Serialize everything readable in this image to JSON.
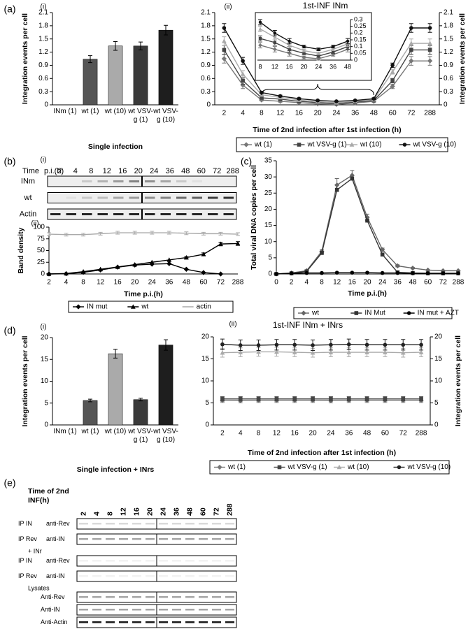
{
  "panels_note_free": null,
  "chart_data": [
    {
      "type": "bar",
      "panel": "(a)",
      "label": "(i)",
      "ylabel": "Integration events per cell",
      "xlabel": "Single infection",
      "categories": [
        "INm (1)",
        "wt (1)",
        "wt (10)",
        "wt VSV-g (1)",
        "wt VSV-g (10)"
      ],
      "values": [
        0,
        1.04,
        1.34,
        1.34,
        1.7
      ],
      "errors": [
        0,
        0.08,
        0.1,
        0.09,
        0.11
      ],
      "colors": [
        "#ffffff",
        "#555555",
        "#aaaaaa",
        "#3a3a3a",
        "#1e1e1e"
      ],
      "ylim": [
        0,
        2.1
      ],
      "yticks": [
        0,
        0.3,
        0.6,
        0.9,
        1.2,
        1.5,
        1.8,
        2.1
      ],
      "yaxis_sides": [
        "left"
      ]
    },
    {
      "type": "line",
      "label": "(ii)",
      "title": "1st-INF INm",
      "ylabel": "Integration events per cell",
      "xlabel": "Time of 2nd infection after 1st infection (h)",
      "categories": [
        "2",
        "4",
        "8",
        "12",
        "16",
        "20",
        "24",
        "36",
        "48",
        "60",
        "72",
        "288"
      ],
      "series": [
        {
          "name": "wt (1)",
          "color": "#777777",
          "marker": "diamond",
          "values": [
            1.05,
            0.45,
            0.11,
            0.08,
            0.05,
            0.02,
            0.01,
            0.04,
            0.08,
            0.42,
            1.0,
            1.0
          ],
          "errors": [
            0.1,
            0.08,
            0.02,
            0.02,
            0.02,
            0.01,
            0.01,
            0.01,
            0.02,
            0.05,
            0.1,
            0.1
          ]
        },
        {
          "name": "wt VSV-g (1)",
          "color": "#444444",
          "marker": "square",
          "values": [
            1.25,
            0.55,
            0.16,
            0.13,
            0.08,
            0.05,
            0.03,
            0.06,
            0.1,
            0.55,
            1.25,
            1.25
          ],
          "errors": [
            0.1,
            0.08,
            0.02,
            0.02,
            0.02,
            0.01,
            0.01,
            0.01,
            0.02,
            0.05,
            0.1,
            0.1
          ]
        },
        {
          "name": "wt (10)",
          "color": "#aaaaaa",
          "marker": "triangle",
          "values": [
            1.45,
            0.7,
            0.23,
            0.17,
            0.11,
            0.07,
            0.05,
            0.08,
            0.12,
            0.75,
            1.4,
            1.4
          ],
          "errors": [
            0.1,
            0.08,
            0.02,
            0.02,
            0.02,
            0.01,
            0.01,
            0.01,
            0.02,
            0.05,
            0.1,
            0.1
          ]
        },
        {
          "name": "wt VSV-g (10)",
          "color": "#111111",
          "marker": "circle",
          "values": [
            1.75,
            1.0,
            0.28,
            0.2,
            0.14,
            0.1,
            0.08,
            0.1,
            0.14,
            0.9,
            1.75,
            1.75
          ],
          "errors": [
            0.1,
            0.08,
            0.02,
            0.02,
            0.02,
            0.01,
            0.01,
            0.01,
            0.02,
            0.05,
            0.1,
            0.1
          ]
        }
      ],
      "ylim": [
        0,
        2.1
      ],
      "yticks": [
        0,
        0.3,
        0.6,
        0.9,
        1.2,
        1.5,
        1.8,
        2.1
      ],
      "yaxis_sides": [
        "left",
        "right"
      ],
      "ylabel_side": "right",
      "legend": "bottom",
      "inset": {
        "categories": [
          "8",
          "12",
          "16",
          "20",
          "24",
          "36",
          "48"
        ],
        "ylim": [
          0,
          0.3
        ],
        "yticks": [
          0,
          0.05,
          0.1,
          0.15,
          0.2,
          0.25,
          0.3
        ]
      }
    },
    {
      "type": "line",
      "label": "(ii)",
      "ylabel": "Band density",
      "xlabel": "Time p.i.(h)",
      "x_on_ticks": true,
      "categories": [
        "2",
        "4",
        "8",
        "12",
        "16",
        "20",
        "24",
        "36",
        "48",
        "60",
        "72",
        "288"
      ],
      "series": [
        {
          "name": "IN mut",
          "color": "#000000",
          "marker": "diamond",
          "values": [
            0,
            0.5,
            3.5,
            8.5,
            14.5,
            19,
            21,
            22,
            10,
            3,
            0,
            null
          ]
        },
        {
          "name": "wt",
          "color": "#000000",
          "marker": "triangle",
          "values": [
            0,
            1,
            5,
            10,
            15,
            20,
            25,
            30,
            35,
            42,
            64,
            65
          ],
          "errors": [
            0,
            0,
            0,
            0,
            0,
            0,
            0,
            0,
            2,
            3,
            4,
            4
          ]
        },
        {
          "name": "actin",
          "color": "#aaaaaa",
          "marker": "none",
          "values": [
            85,
            84,
            84,
            86,
            88,
            88,
            88,
            88,
            87,
            86,
            86,
            85
          ],
          "errors": [
            3,
            3,
            3,
            3,
            3,
            3,
            3,
            3,
            3,
            3,
            3,
            3
          ]
        }
      ],
      "ylim": [
        0,
        100
      ],
      "yticks": [
        0,
        25,
        50,
        75,
        100
      ],
      "yaxis_sides": [
        "left"
      ],
      "legend": "bottom"
    },
    {
      "type": "line",
      "panel": "(c)",
      "ylabel": "Total viral DNA copies per cell",
      "xlabel": "Time p.i.(h)",
      "x_on_ticks": true,
      "categories": [
        "0",
        "2",
        "4",
        "8",
        "12",
        "16",
        "20",
        "24",
        "36",
        "48",
        "60",
        "72",
        "288"
      ],
      "series": [
        {
          "name": "wt",
          "color": "#666666",
          "marker": "diamond",
          "values": [
            0,
            0.3,
            1,
            7,
            27.5,
            30.5,
            17.5,
            7.5,
            2.5,
            1.8,
            1.2,
            1,
            1
          ],
          "errors": [
            0,
            0,
            0.3,
            0.5,
            2,
            1.5,
            1,
            0.5,
            0.3,
            0.2,
            0.1,
            0.1,
            0.1
          ]
        },
        {
          "name": "IN Mut",
          "color": "#333333",
          "marker": "square",
          "values": [
            0,
            0.2,
            0.8,
            6.5,
            26,
            29.5,
            16.5,
            6,
            0.5,
            0.3,
            0.2,
            0.2,
            0.2
          ]
        },
        {
          "name": "IN mut + AZT",
          "color": "#000000",
          "marker": "circle",
          "values": [
            0,
            0.2,
            0.3,
            0.3,
            0.4,
            0.4,
            0.4,
            0.3,
            0.3,
            0.2,
            0.2,
            0.2,
            0.2
          ]
        }
      ],
      "ylim": [
        0,
        35
      ],
      "yticks": [
        0,
        5,
        10,
        15,
        20,
        25,
        30,
        35
      ],
      "yaxis_sides": [
        "left"
      ],
      "legend": "bottom"
    },
    {
      "type": "bar",
      "panel": "(d)",
      "label": "(i)",
      "ylabel": "Integration events per cell",
      "xlabel": "Single infection + INrs",
      "categories": [
        "INm (1)",
        "wt (1)",
        "wt (10)",
        "wt VSV-g (1)",
        "wt VSV-g (10)"
      ],
      "values": [
        0,
        5.6,
        16.3,
        5.8,
        18.3
      ],
      "errors": [
        0,
        0.3,
        1.0,
        0.3,
        1.2
      ],
      "colors": [
        "#ffffff",
        "#555555",
        "#aaaaaa",
        "#3a3a3a",
        "#1e1e1e"
      ],
      "ylim": [
        0,
        20
      ],
      "yticks": [
        0,
        5,
        10,
        15,
        20
      ],
      "yaxis_sides": [
        "left"
      ]
    },
    {
      "type": "line",
      "label": "(ii)",
      "title": "1st-INF INm + INrs",
      "ylabel": "Integration events per cell",
      "xlabel": "Time of 2nd infection after 1st infection (h)",
      "categories": [
        "2",
        "4",
        "8",
        "12",
        "16",
        "20",
        "24",
        "36",
        "48",
        "60",
        "72",
        "288"
      ],
      "series": [
        {
          "name": "wt (1)",
          "color": "#777777",
          "marker": "diamond",
          "values": [
            5.6,
            5.5,
            5.6,
            5.6,
            5.6,
            5.6,
            5.5,
            5.6,
            5.6,
            5.6,
            5.6,
            5.6
          ],
          "errors": [
            0.5,
            0.5,
            0.5,
            0.5,
            0.5,
            0.5,
            0.5,
            0.5,
            0.5,
            0.5,
            0.5,
            0.5
          ]
        },
        {
          "name": "wt VSV-g (1)",
          "color": "#444444",
          "marker": "square",
          "values": [
            5.9,
            5.9,
            5.9,
            5.9,
            5.9,
            5.9,
            5.9,
            5.9,
            5.9,
            5.9,
            5.9,
            5.9
          ],
          "errors": [
            0.5,
            0.5,
            0.5,
            0.5,
            0.5,
            0.5,
            0.5,
            0.5,
            0.5,
            0.5,
            0.5,
            0.5
          ]
        },
        {
          "name": "wt (10)",
          "color": "#aaaaaa",
          "marker": "triangle",
          "values": [
            16.4,
            16.5,
            16.6,
            16.6,
            16.5,
            16.4,
            16.5,
            16.5,
            16.5,
            16.5,
            16.4,
            16.5
          ],
          "errors": [
            1,
            1,
            1,
            1,
            1,
            1,
            1,
            1,
            1,
            1,
            1,
            1
          ]
        },
        {
          "name": "wt VSV-g (10)",
          "color": "#222222",
          "marker": "circle",
          "values": [
            18.3,
            18.1,
            18.1,
            18.2,
            18.2,
            18.1,
            18.2,
            18.3,
            18.2,
            18.2,
            18.2,
            18.2
          ],
          "errors": [
            1.2,
            1.2,
            1.2,
            1.2,
            1.2,
            1.2,
            1.2,
            1.2,
            1.2,
            1.2,
            1.2,
            1.2
          ]
        }
      ],
      "ylim": [
        0,
        20
      ],
      "yticks": [
        0,
        5,
        10,
        15,
        20
      ],
      "yaxis_sides": [
        "left",
        "right"
      ],
      "ylabel_side": "right",
      "legend": "bottom"
    }
  ],
  "gel_b": {
    "panel": "(b)",
    "label": "(i)",
    "header": [
      "Time",
      "p.i.(h)"
    ],
    "lanes": [
      "2",
      "4",
      "8",
      "12",
      "16",
      "20",
      "24",
      "36",
      "48",
      "60",
      "72",
      "288"
    ],
    "rows": [
      "INm",
      "wt",
      "Actin"
    ]
  },
  "blot_e": {
    "panel": "(e)",
    "header": [
      "Time of 2nd",
      "INF(h)"
    ],
    "lanes": [
      "2",
      "4",
      "8",
      "12",
      "16",
      "20",
      "24",
      "36",
      "48",
      "60",
      "72",
      "288"
    ],
    "rows": [
      {
        "ip": "IP IN",
        "antibody": "anti-Rev"
      },
      {
        "ip": "IP Rev",
        "antibody": "anti-IN"
      },
      {
        "group": "+ INr",
        "ip": "IP IN",
        "antibody": "anti-Rev"
      },
      {
        "ip": "IP Rev",
        "antibody": "anti-IN"
      },
      {
        "group": "Lysates",
        "antibody": "Anti-Rev"
      },
      {
        "antibody": "Anti-IN"
      },
      {
        "antibody": "Anti-Actin"
      }
    ]
  }
}
